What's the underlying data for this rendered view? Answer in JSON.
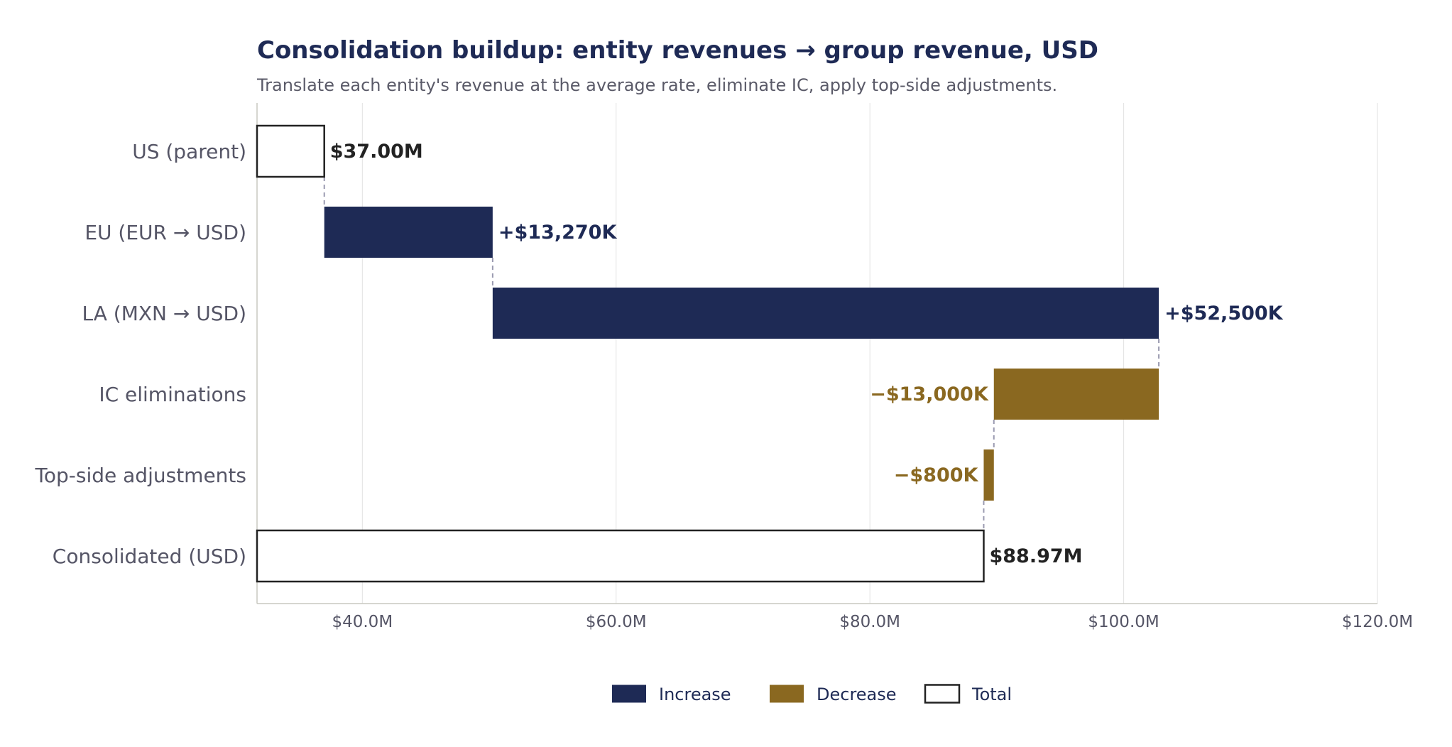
{
  "chart_data": {
    "type": "waterfall",
    "orientation": "horizontal",
    "title": "Consolidation buildup: entity revenues → group revenue, USD",
    "subtitle": "Translate each entity's revenue at the average rate, eliminate IC, apply top-side adjustments.",
    "xlim": [
      31.7,
      120.0
    ],
    "x_ticks": [
      40,
      60,
      80,
      100,
      120
    ],
    "x_tick_labels": [
      "$40.0M",
      "$60.0M",
      "$80.0M",
      "$100.0M",
      "$120.0M"
    ],
    "grid": "vertical",
    "legend_position": "bottom-center",
    "steps": [
      {
        "label": "US (parent)",
        "kind": "total",
        "start": 0,
        "end": 37.0,
        "value_label": "$37.00M"
      },
      {
        "label": "EU (EUR → USD)",
        "kind": "increase",
        "start": 37.0,
        "end": 50.27,
        "value_label": "+$13,270K"
      },
      {
        "label": "LA (MXN → USD)",
        "kind": "increase",
        "start": 50.27,
        "end": 102.77,
        "value_label": "+$52,500K"
      },
      {
        "label": "IC eliminations",
        "kind": "decrease",
        "start": 102.77,
        "end": 89.77,
        "value_label": "−$13,000K"
      },
      {
        "label": "Top-side adjustments",
        "kind": "decrease",
        "start": 89.77,
        "end": 88.97,
        "value_label": "−$800K"
      },
      {
        "label": "Consolidated (USD)",
        "kind": "total",
        "start": 0,
        "end": 88.97,
        "value_label": "$88.97M"
      }
    ],
    "legend": [
      {
        "kind": "increase",
        "label": "Increase"
      },
      {
        "kind": "decrease",
        "label": "Decrease"
      },
      {
        "kind": "total",
        "label": "Total"
      }
    ],
    "colors": {
      "increase": "#1e2a55",
      "decrease": "#8a6820",
      "total_fill": "#ffffff",
      "total_stroke": "#222222",
      "total_label": "#222222",
      "connector": "#9a9ab0",
      "grid": "#e2e2e2",
      "axis": "#c8c8c0"
    }
  }
}
